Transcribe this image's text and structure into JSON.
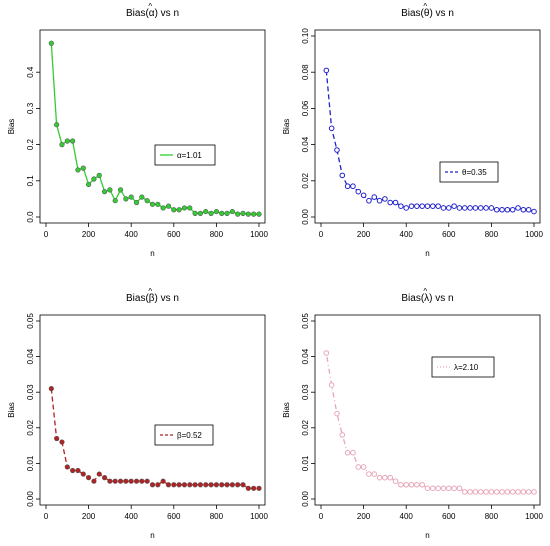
{
  "chart_data": [
    {
      "type": "line",
      "title_prefix": "Bias(",
      "title_symbol": "α",
      "title_suffix": ") vs n",
      "xlabel": "n",
      "ylabel": "Bias",
      "xlim": [
        0,
        1000
      ],
      "ylim": [
        0,
        0.5
      ],
      "xticks": [
        0,
        200,
        400,
        600,
        800,
        1000
      ],
      "yticks": [
        0.0,
        0.1,
        0.2,
        0.3,
        0.4
      ],
      "ytick_labels": [
        "0.0",
        "0.1",
        "0.2",
        "0.3",
        "0.4"
      ],
      "legend_position": "center-right",
      "line_style": "solid",
      "marker": "filled",
      "color": "#33cc33",
      "series": [
        {
          "name": "α=1.01",
          "x": [
            25,
            50,
            75,
            100,
            125,
            150,
            175,
            200,
            225,
            250,
            275,
            300,
            325,
            350,
            375,
            400,
            425,
            450,
            475,
            500,
            525,
            550,
            575,
            600,
            625,
            650,
            675,
            700,
            725,
            750,
            775,
            800,
            825,
            850,
            875,
            900,
            925,
            950,
            975,
            1000
          ],
          "y": [
            0.48,
            0.255,
            0.2,
            0.21,
            0.21,
            0.13,
            0.135,
            0.09,
            0.105,
            0.115,
            0.07,
            0.075,
            0.045,
            0.075,
            0.05,
            0.055,
            0.04,
            0.055,
            0.045,
            0.035,
            0.035,
            0.025,
            0.03,
            0.02,
            0.02,
            0.025,
            0.025,
            0.01,
            0.01,
            0.015,
            0.01,
            0.015,
            0.01,
            0.01,
            0.015,
            0.008,
            0.01,
            0.008,
            0.008,
            0.008
          ]
        }
      ]
    },
    {
      "type": "line",
      "title_prefix": "Bias(",
      "title_symbol": "θ",
      "title_suffix": ") vs n",
      "xlabel": "n",
      "ylabel": "Bias",
      "xlim": [
        0,
        1000
      ],
      "ylim": [
        0,
        0.1
      ],
      "xticks": [
        0,
        200,
        400,
        600,
        800,
        1000
      ],
      "yticks": [
        0.0,
        0.02,
        0.04,
        0.06,
        0.08,
        0.1
      ],
      "ytick_labels": [
        "0.00",
        "0.02",
        "0.04",
        "0.06",
        "0.08",
        "0.10"
      ],
      "legend_position": "right",
      "line_style": "dashed",
      "marker": "open",
      "color": "#2222cc",
      "series": [
        {
          "name": "θ=0.35",
          "x": [
            25,
            50,
            75,
            100,
            125,
            150,
            175,
            200,
            225,
            250,
            275,
            300,
            325,
            350,
            375,
            400,
            425,
            450,
            475,
            500,
            525,
            550,
            575,
            600,
            625,
            650,
            675,
            700,
            725,
            750,
            775,
            800,
            825,
            850,
            875,
            900,
            925,
            950,
            975,
            1000
          ],
          "y": [
            0.081,
            0.049,
            0.037,
            0.023,
            0.017,
            0.017,
            0.014,
            0.012,
            0.009,
            0.011,
            0.009,
            0.01,
            0.008,
            0.008,
            0.006,
            0.005,
            0.006,
            0.006,
            0.006,
            0.006,
            0.006,
            0.006,
            0.005,
            0.005,
            0.006,
            0.005,
            0.005,
            0.005,
            0.005,
            0.005,
            0.005,
            0.005,
            0.004,
            0.004,
            0.004,
            0.004,
            0.005,
            0.004,
            0.004,
            0.003
          ]
        }
      ]
    },
    {
      "type": "line",
      "title_prefix": "Bias(",
      "title_symbol": "β",
      "title_suffix": ") vs n",
      "xlabel": "n",
      "ylabel": "Bias",
      "xlim": [
        0,
        1000
      ],
      "ylim": [
        0,
        0.05
      ],
      "xticks": [
        0,
        200,
        400,
        600,
        800,
        1000
      ],
      "yticks": [
        0.0,
        0.01,
        0.02,
        0.03,
        0.04,
        0.05
      ],
      "ytick_labels": [
        "0.00",
        "0.01",
        "0.02",
        "0.03",
        "0.04",
        "0.05"
      ],
      "legend_position": "right",
      "line_style": "dashed",
      "marker": "filled",
      "color": "#b22222",
      "series": [
        {
          "name": "β=0.52",
          "x": [
            25,
            50,
            75,
            100,
            125,
            150,
            175,
            200,
            225,
            250,
            275,
            300,
            325,
            350,
            375,
            400,
            425,
            450,
            475,
            500,
            525,
            550,
            575,
            600,
            625,
            650,
            675,
            700,
            725,
            750,
            775,
            800,
            825,
            850,
            875,
            900,
            925,
            950,
            975,
            1000
          ],
          "y": [
            0.031,
            0.017,
            0.016,
            0.009,
            0.008,
            0.008,
            0.007,
            0.006,
            0.005,
            0.007,
            0.006,
            0.005,
            0.005,
            0.005,
            0.005,
            0.005,
            0.005,
            0.005,
            0.005,
            0.004,
            0.004,
            0.005,
            0.004,
            0.004,
            0.004,
            0.004,
            0.004,
            0.004,
            0.004,
            0.004,
            0.004,
            0.004,
            0.004,
            0.004,
            0.004,
            0.004,
            0.004,
            0.003,
            0.003,
            0.003
          ]
        }
      ]
    },
    {
      "type": "line",
      "title_prefix": "Bias(",
      "title_symbol": "λ",
      "title_suffix": ") vs n",
      "xlabel": "n",
      "ylabel": "Bias",
      "xlim": [
        0,
        1000
      ],
      "ylim": [
        0,
        0.05
      ],
      "xticks": [
        0,
        200,
        400,
        600,
        800,
        1000
      ],
      "yticks": [
        0.0,
        0.01,
        0.02,
        0.03,
        0.04,
        0.05
      ],
      "ytick_labels": [
        "0.00",
        "0.01",
        "0.02",
        "0.03",
        "0.04",
        "0.05"
      ],
      "legend_position": "top-right",
      "line_style": "dotdash",
      "marker": "open",
      "color": "#e8a6b8",
      "series": [
        {
          "name": "λ=2.10",
          "x": [
            25,
            50,
            75,
            100,
            125,
            150,
            175,
            200,
            225,
            250,
            275,
            300,
            325,
            350,
            375,
            400,
            425,
            450,
            475,
            500,
            525,
            550,
            575,
            600,
            625,
            650,
            675,
            700,
            725,
            750,
            775,
            800,
            825,
            850,
            875,
            900,
            925,
            950,
            975,
            1000
          ],
          "y": [
            0.041,
            0.032,
            0.024,
            0.018,
            0.013,
            0.013,
            0.009,
            0.009,
            0.007,
            0.007,
            0.006,
            0.006,
            0.006,
            0.005,
            0.004,
            0.004,
            0.004,
            0.004,
            0.004,
            0.003,
            0.003,
            0.003,
            0.003,
            0.003,
            0.003,
            0.003,
            0.002,
            0.002,
            0.002,
            0.002,
            0.002,
            0.002,
            0.002,
            0.002,
            0.002,
            0.002,
            0.002,
            0.002,
            0.002,
            0.002
          ]
        }
      ]
    }
  ]
}
